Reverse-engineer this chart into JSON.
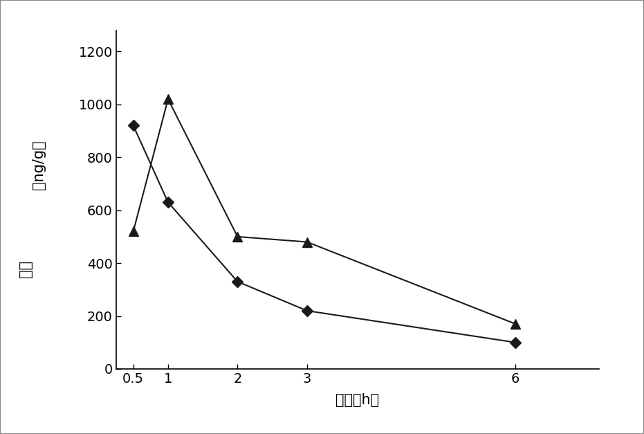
{
  "series_diamond": {
    "x": [
      0.5,
      1,
      2,
      3,
      6
    ],
    "y": [
      920,
      630,
      330,
      220,
      100
    ],
    "marker": "D",
    "markersize": 8,
    "color": "#1a1a1a",
    "linewidth": 1.5
  },
  "series_triangle": {
    "x": [
      0.5,
      1,
      2,
      3,
      6
    ],
    "y": [
      520,
      1020,
      500,
      480,
      170
    ],
    "marker": "^",
    "markersize": 10,
    "color": "#1a1a1a",
    "linewidth": 1.5
  },
  "xlabel": "时间（h）",
  "ylabel_top": "（ng/g）",
  "ylabel_bottom": "含量",
  "xlim": [
    0.25,
    7.2
  ],
  "ylim": [
    0,
    1280
  ],
  "xticks": [
    0.5,
    1,
    2,
    3,
    6
  ],
  "yticks": [
    0,
    200,
    400,
    600,
    800,
    1000,
    1200
  ],
  "xtick_labels": [
    "0.5",
    "1",
    "2",
    "3",
    "6"
  ],
  "ytick_labels": [
    "0",
    "200",
    "400",
    "600",
    "800",
    "1000",
    "1200"
  ],
  "xlabel_fontsize": 15,
  "ylabel_fontsize": 15,
  "tick_fontsize": 14,
  "background_color": "#ffffff",
  "figure_facecolor": "#ffffff",
  "border_color": "#888888"
}
